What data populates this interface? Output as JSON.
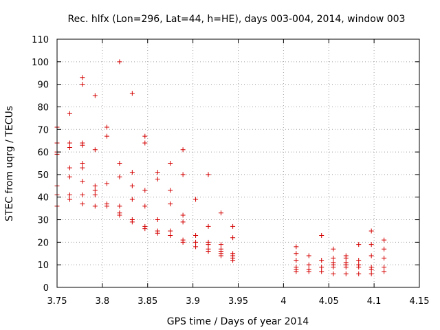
{
  "chart_data": {
    "type": "scatter",
    "title": "Rec. hlfx (Lon=296, Lat=44, h=HE), days 003-004, 2014, window 003",
    "xlabel": "GPS time / Days of year 2014",
    "ylabel": "STEC from uqrg / TECUs",
    "xlim": [
      3.75,
      4.15
    ],
    "ylim": [
      0,
      110
    ],
    "grid": true,
    "marker": "+",
    "color": "#d40000",
    "x_ticks": [
      3.75,
      3.8,
      3.85,
      3.9,
      3.95,
      4.0,
      4.05,
      4.1,
      4.15
    ],
    "x_tick_labels": [
      "3.75",
      "3.8",
      "3.85",
      "3.9",
      "3.95",
      "4",
      "4.05",
      "4.1",
      "4.15"
    ],
    "y_ticks": [
      0,
      10,
      20,
      30,
      40,
      50,
      60,
      70,
      80,
      90,
      100,
      110
    ],
    "y_tick_labels": [
      "0",
      "10",
      "20",
      "30",
      "40",
      "50",
      "60",
      "70",
      "80",
      "90",
      "100",
      "110"
    ],
    "series": [
      {
        "name": "STEC",
        "points": [
          [
            3.75,
            71
          ],
          [
            3.75,
            64
          ],
          [
            3.75,
            60
          ],
          [
            3.75,
            59
          ],
          [
            3.75,
            45
          ],
          [
            3.75,
            41
          ],
          [
            3.75,
            36
          ],
          [
            3.764,
            77
          ],
          [
            3.764,
            64
          ],
          [
            3.764,
            62
          ],
          [
            3.764,
            53
          ],
          [
            3.764,
            49
          ],
          [
            3.764,
            41
          ],
          [
            3.764,
            39
          ],
          [
            3.778,
            93
          ],
          [
            3.778,
            90
          ],
          [
            3.778,
            64
          ],
          [
            3.778,
            63
          ],
          [
            3.778,
            55
          ],
          [
            3.778,
            53
          ],
          [
            3.778,
            47
          ],
          [
            3.778,
            41
          ],
          [
            3.778,
            37
          ],
          [
            3.792,
            85
          ],
          [
            3.792,
            61
          ],
          [
            3.792,
            45
          ],
          [
            3.792,
            43
          ],
          [
            3.792,
            41
          ],
          [
            3.792,
            36
          ],
          [
            3.805,
            71
          ],
          [
            3.805,
            67
          ],
          [
            3.805,
            46
          ],
          [
            3.805,
            37
          ],
          [
            3.805,
            36
          ],
          [
            3.819,
            100
          ],
          [
            3.819,
            55
          ],
          [
            3.819,
            49
          ],
          [
            3.819,
            36
          ],
          [
            3.819,
            33
          ],
          [
            3.819,
            32
          ],
          [
            3.833,
            86
          ],
          [
            3.833,
            51
          ],
          [
            3.833,
            45
          ],
          [
            3.833,
            39
          ],
          [
            3.833,
            30
          ],
          [
            3.833,
            29
          ],
          [
            3.847,
            67
          ],
          [
            3.847,
            64
          ],
          [
            3.847,
            43
          ],
          [
            3.847,
            36
          ],
          [
            3.847,
            27
          ],
          [
            3.847,
            26
          ],
          [
            3.861,
            51
          ],
          [
            3.861,
            48
          ],
          [
            3.861,
            30
          ],
          [
            3.861,
            25
          ],
          [
            3.861,
            24
          ],
          [
            3.875,
            55
          ],
          [
            3.875,
            43
          ],
          [
            3.875,
            37
          ],
          [
            3.875,
            25
          ],
          [
            3.875,
            23
          ],
          [
            3.889,
            61
          ],
          [
            3.889,
            50
          ],
          [
            3.889,
            32
          ],
          [
            3.889,
            29
          ],
          [
            3.889,
            21
          ],
          [
            3.889,
            20
          ],
          [
            3.903,
            39
          ],
          [
            3.903,
            23
          ],
          [
            3.903,
            20
          ],
          [
            3.903,
            18
          ],
          [
            3.917,
            50
          ],
          [
            3.917,
            27
          ],
          [
            3.917,
            20
          ],
          [
            3.917,
            19
          ],
          [
            3.917,
            17
          ],
          [
            3.917,
            16
          ],
          [
            3.931,
            33
          ],
          [
            3.931,
            19
          ],
          [
            3.931,
            17
          ],
          [
            3.931,
            16
          ],
          [
            3.931,
            15
          ],
          [
            3.931,
            14
          ],
          [
            3.944,
            27
          ],
          [
            3.944,
            22
          ],
          [
            3.944,
            15
          ],
          [
            3.944,
            14
          ],
          [
            3.944,
            13
          ],
          [
            3.944,
            12
          ],
          [
            4.014,
            18
          ],
          [
            4.014,
            15
          ],
          [
            4.014,
            12
          ],
          [
            4.014,
            9
          ],
          [
            4.014,
            8
          ],
          [
            4.014,
            7
          ],
          [
            4.028,
            14
          ],
          [
            4.028,
            10
          ],
          [
            4.028,
            8
          ],
          [
            4.028,
            7
          ],
          [
            4.042,
            23
          ],
          [
            4.042,
            12
          ],
          [
            4.042,
            9
          ],
          [
            4.042,
            7
          ],
          [
            4.055,
            17
          ],
          [
            4.055,
            13
          ],
          [
            4.055,
            11
          ],
          [
            4.055,
            10
          ],
          [
            4.055,
            9
          ],
          [
            4.055,
            6
          ],
          [
            4.069,
            14
          ],
          [
            4.069,
            13
          ],
          [
            4.069,
            11
          ],
          [
            4.069,
            10
          ],
          [
            4.069,
            9
          ],
          [
            4.069,
            6
          ],
          [
            4.083,
            19
          ],
          [
            4.083,
            12
          ],
          [
            4.083,
            10
          ],
          [
            4.083,
            9
          ],
          [
            4.083,
            6
          ],
          [
            4.097,
            25
          ],
          [
            4.097,
            19
          ],
          [
            4.097,
            14
          ],
          [
            4.097,
            9
          ],
          [
            4.097,
            8
          ],
          [
            4.097,
            6
          ],
          [
            4.111,
            21
          ],
          [
            4.111,
            17
          ],
          [
            4.111,
            13
          ],
          [
            4.111,
            9
          ],
          [
            4.111,
            7
          ]
        ]
      }
    ]
  }
}
